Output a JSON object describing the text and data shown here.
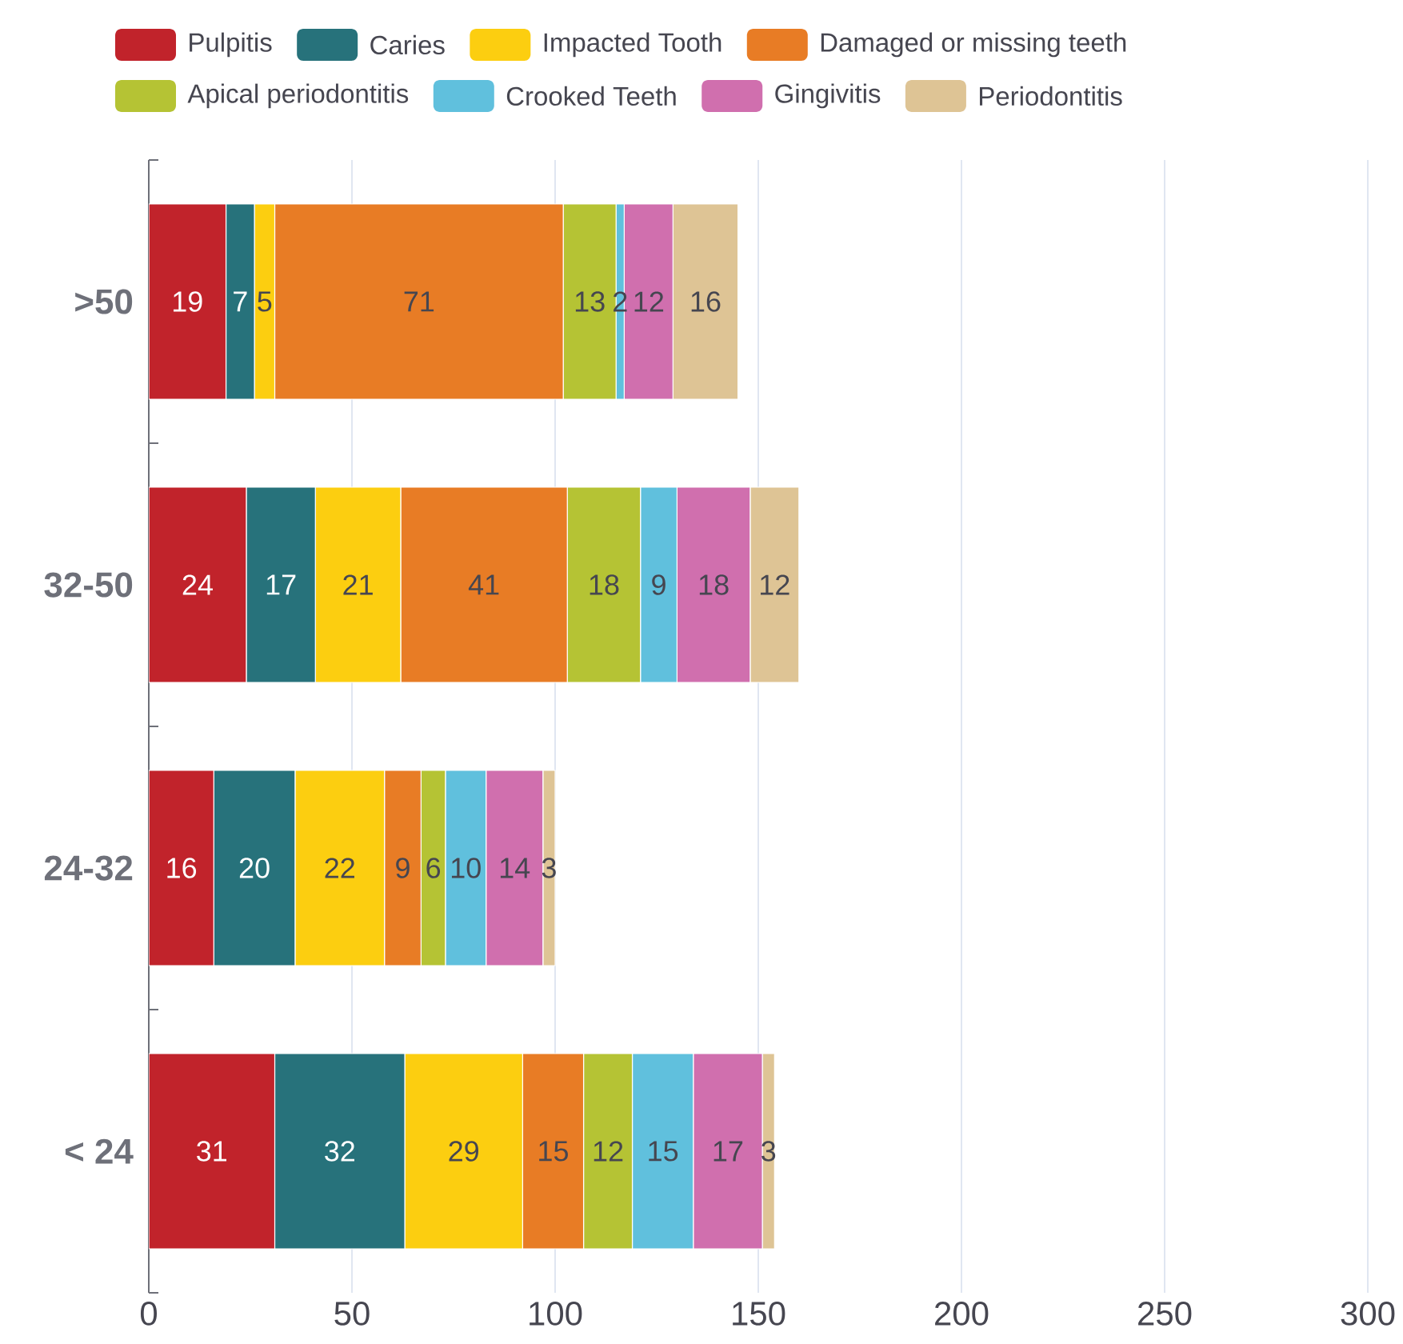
{
  "chart_data": {
    "type": "bar",
    "orientation": "horizontal",
    "stacked": true,
    "data_labels": true,
    "grid": "x",
    "legend": "top",
    "categories": [
      ">50",
      "32-50",
      "24-32",
      "< 24"
    ],
    "xlim": [
      0,
      300
    ],
    "xticks": [
      0,
      50,
      100,
      150,
      200,
      250,
      300
    ],
    "series": [
      {
        "name": "Pulpitis",
        "color": "#c1232b",
        "values": [
          19,
          24,
          16,
          31
        ]
      },
      {
        "name": "Caries",
        "color": "#27727b",
        "values": [
          7,
          17,
          20,
          32
        ]
      },
      {
        "name": "Impacted Tooth",
        "color": "#fcce10",
        "values": [
          5,
          21,
          22,
          29
        ]
      },
      {
        "name": "Damaged or missing teeth",
        "color": "#e87c25",
        "values": [
          71,
          41,
          9,
          15
        ]
      },
      {
        "name": "Apical periodontitis",
        "color": "#b5c334",
        "values": [
          13,
          18,
          6,
          12
        ]
      },
      {
        "name": "Crooked Teeth",
        "color": "#60c0dd",
        "values": [
          2,
          9,
          10,
          15
        ]
      },
      {
        "name": "Gingivitis",
        "color": "#d06fae",
        "values": [
          12,
          18,
          14,
          17
        ]
      },
      {
        "name": "Periodontitis",
        "color": "#dec495",
        "values": [
          16,
          12,
          3,
          3
        ]
      }
    ]
  }
}
